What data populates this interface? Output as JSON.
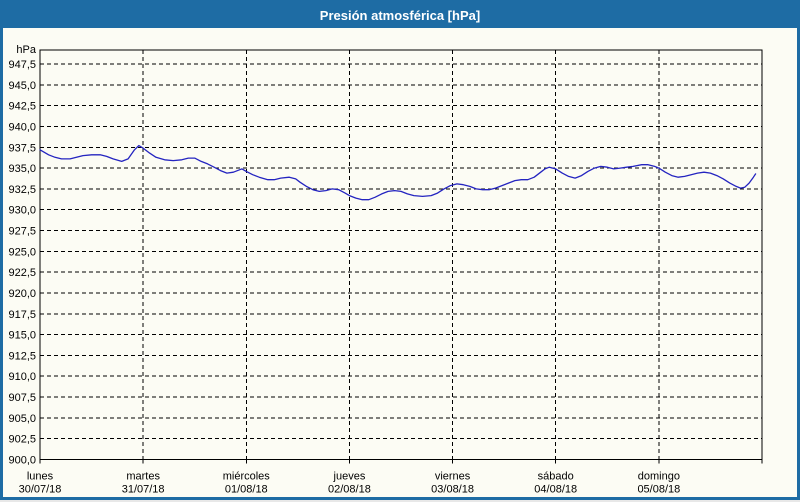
{
  "window": {
    "title": "Presión atmosférica [hPa]"
  },
  "colors": {
    "frame": "#1e6ca4",
    "title_text": "#ffffff",
    "background": "#fcfcf4",
    "grid": "#000000",
    "axis": "#000000",
    "line": "#2424c0",
    "label": "#000000"
  },
  "chart_data": {
    "type": "line",
    "title": "Presión atmosférica [hPa]",
    "ylabel": "hPa",
    "ylim": [
      900,
      947.5
    ],
    "ytick_step": 2.5,
    "xlim": [
      0,
      168
    ],
    "x_unit": "hours",
    "grid": true,
    "legend": "none",
    "yticks": [
      {
        "value": 947.5,
        "label": "947,5"
      },
      {
        "value": 945.0,
        "label": "945,0"
      },
      {
        "value": 942.5,
        "label": "942,5"
      },
      {
        "value": 940.0,
        "label": "940,0"
      },
      {
        "value": 937.5,
        "label": "937,5"
      },
      {
        "value": 935.0,
        "label": "935,0"
      },
      {
        "value": 932.5,
        "label": "932,5"
      },
      {
        "value": 930.0,
        "label": "930,0"
      },
      {
        "value": 927.5,
        "label": "927,5"
      },
      {
        "value": 925.0,
        "label": "925,0"
      },
      {
        "value": 922.5,
        "label": "922,5"
      },
      {
        "value": 920.0,
        "label": "920,0"
      },
      {
        "value": 917.5,
        "label": "917,5"
      },
      {
        "value": 915.0,
        "label": "915,0"
      },
      {
        "value": 912.5,
        "label": "912,5"
      },
      {
        "value": 910.0,
        "label": "910,0"
      },
      {
        "value": 907.5,
        "label": "907,5"
      },
      {
        "value": 905.0,
        "label": "905,0"
      },
      {
        "value": 902.5,
        "label": "902,5"
      },
      {
        "value": 900.0,
        "label": "900,0"
      }
    ],
    "days": [
      {
        "name": "lunes",
        "date": "30/07/18",
        "hour": 0
      },
      {
        "name": "martes",
        "date": "31/07/18",
        "hour": 24
      },
      {
        "name": "miércoles",
        "date": "01/08/18",
        "hour": 48
      },
      {
        "name": "jueves",
        "date": "02/08/18",
        "hour": 72
      },
      {
        "name": "viernes",
        "date": "03/08/18",
        "hour": 96
      },
      {
        "name": "sábado",
        "date": "04/08/18",
        "hour": 120
      },
      {
        "name": "domingo",
        "date": "05/08/18",
        "hour": 144
      }
    ],
    "series": [
      {
        "name": "Presión atmosférica",
        "color": "#2424c0",
        "points": [
          [
            0,
            937.2
          ],
          [
            1,
            936.9
          ],
          [
            2,
            936.6
          ],
          [
            3.5,
            936.3
          ],
          [
            5,
            936.1
          ],
          [
            7,
            936.1
          ],
          [
            8.5,
            936.3
          ],
          [
            10,
            936.5
          ],
          [
            12,
            936.6
          ],
          [
            14,
            936.6
          ],
          [
            15.5,
            936.4
          ],
          [
            17,
            936.1
          ],
          [
            19,
            935.8
          ],
          [
            20.5,
            936.1
          ],
          [
            22,
            937.2
          ],
          [
            23,
            937.7
          ],
          [
            24,
            937.4
          ],
          [
            25.5,
            936.8
          ],
          [
            27,
            936.3
          ],
          [
            29,
            936.0
          ],
          [
            31,
            935.9
          ],
          [
            33,
            936.0
          ],
          [
            34.5,
            936.2
          ],
          [
            36,
            936.2
          ],
          [
            37.5,
            935.8
          ],
          [
            39,
            935.5
          ],
          [
            40.5,
            935.1
          ],
          [
            42,
            934.7
          ],
          [
            43.5,
            934.4
          ],
          [
            45,
            934.5
          ],
          [
            46.5,
            934.8
          ],
          [
            47,
            934.9
          ],
          [
            48,
            934.6
          ],
          [
            49.5,
            934.2
          ],
          [
            51,
            933.9
          ],
          [
            53,
            933.6
          ],
          [
            54.5,
            933.6
          ],
          [
            56,
            933.8
          ],
          [
            58,
            933.9
          ],
          [
            59.5,
            933.7
          ],
          [
            60.5,
            933.3
          ],
          [
            62,
            932.8
          ],
          [
            63.5,
            932.4
          ],
          [
            65,
            932.2
          ],
          [
            66.5,
            932.3
          ],
          [
            68,
            932.5
          ],
          [
            69.5,
            932.4
          ],
          [
            71,
            932.0
          ],
          [
            72,
            931.7
          ],
          [
            73.5,
            931.4
          ],
          [
            75,
            931.2
          ],
          [
            76.5,
            931.2
          ],
          [
            78,
            931.5
          ],
          [
            79.5,
            931.9
          ],
          [
            81,
            932.2
          ],
          [
            82.5,
            932.3
          ],
          [
            84,
            932.2
          ],
          [
            85.5,
            931.9
          ],
          [
            87,
            931.7
          ],
          [
            89,
            931.6
          ],
          [
            91,
            931.7
          ],
          [
            92.5,
            932.0
          ],
          [
            94,
            932.5
          ],
          [
            95.5,
            932.9
          ],
          [
            97,
            933.1
          ],
          [
            98.5,
            933.0
          ],
          [
            100,
            932.8
          ],
          [
            101.5,
            932.5
          ],
          [
            103,
            932.4
          ],
          [
            104.5,
            932.4
          ],
          [
            106,
            932.6
          ],
          [
            107.5,
            932.9
          ],
          [
            109,
            933.2
          ],
          [
            110.5,
            933.5
          ],
          [
            112,
            933.6
          ],
          [
            113.5,
            933.6
          ],
          [
            115,
            933.9
          ],
          [
            116.5,
            934.5
          ],
          [
            117.5,
            934.9
          ],
          [
            118.5,
            935.1
          ],
          [
            120,
            934.9
          ],
          [
            121.5,
            934.4
          ],
          [
            123,
            934.0
          ],
          [
            124.5,
            933.8
          ],
          [
            126,
            934.1
          ],
          [
            127.5,
            934.6
          ],
          [
            129,
            935.0
          ],
          [
            130.5,
            935.2
          ],
          [
            132,
            935.1
          ],
          [
            133.5,
            934.9
          ],
          [
            135,
            935.0
          ],
          [
            136.5,
            935.1
          ],
          [
            138,
            935.2
          ],
          [
            140,
            935.4
          ],
          [
            141.5,
            935.4
          ],
          [
            143,
            935.2
          ],
          [
            144,
            935.0
          ],
          [
            145.5,
            934.5
          ],
          [
            147,
            934.1
          ],
          [
            148.5,
            933.9
          ],
          [
            150,
            934.0
          ],
          [
            151.5,
            934.2
          ],
          [
            153,
            934.4
          ],
          [
            154.5,
            934.5
          ],
          [
            156,
            934.4
          ],
          [
            157.5,
            934.1
          ],
          [
            159,
            933.7
          ],
          [
            160.5,
            933.2
          ],
          [
            162,
            932.8
          ],
          [
            163,
            932.6
          ],
          [
            164,
            932.7
          ],
          [
            165,
            933.2
          ],
          [
            166,
            933.9
          ],
          [
            166.5,
            934.3
          ]
        ]
      }
    ]
  }
}
